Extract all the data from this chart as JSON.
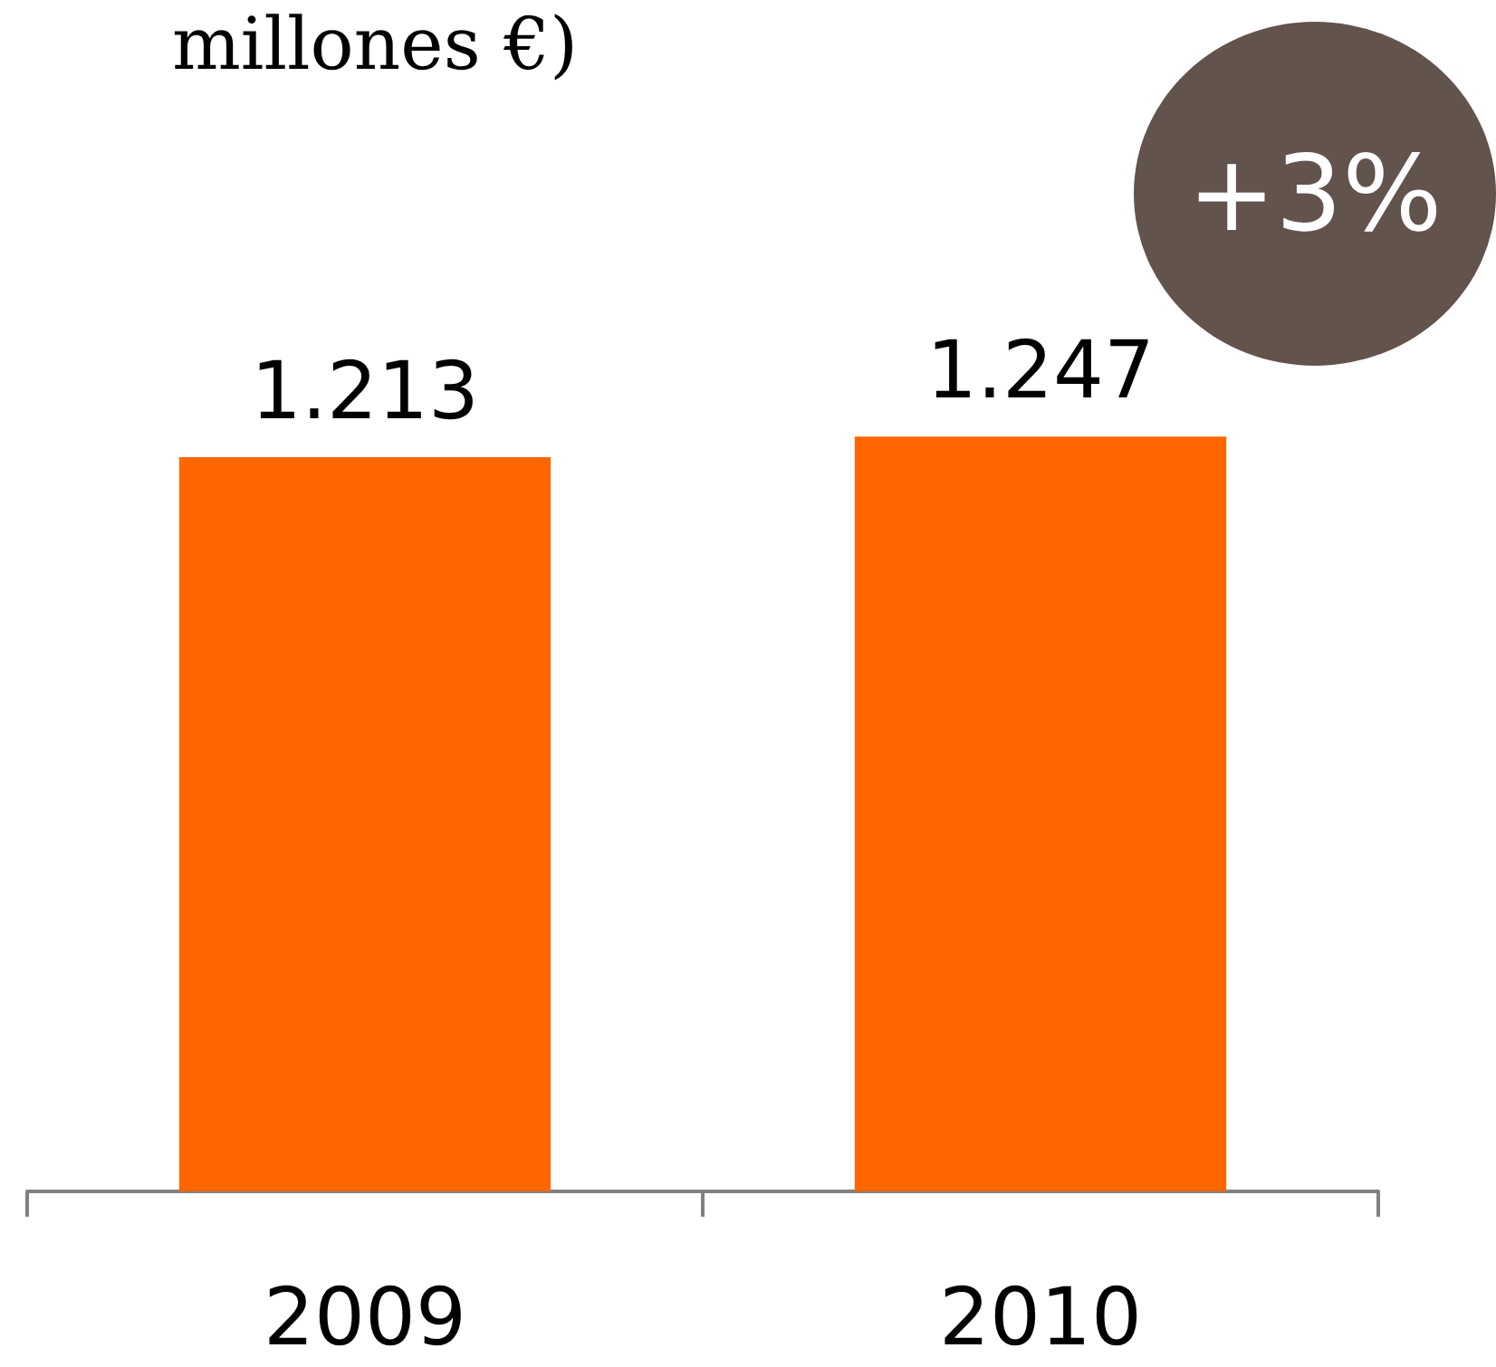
{
  "chart_data": {
    "type": "bar",
    "title": "millones €)",
    "categories": [
      "2009",
      "2010"
    ],
    "values": [
      1213,
      1247
    ],
    "value_labels": [
      "1.213",
      "1.247"
    ],
    "color": "#ff6600",
    "annotations": [
      "+3%"
    ]
  }
}
